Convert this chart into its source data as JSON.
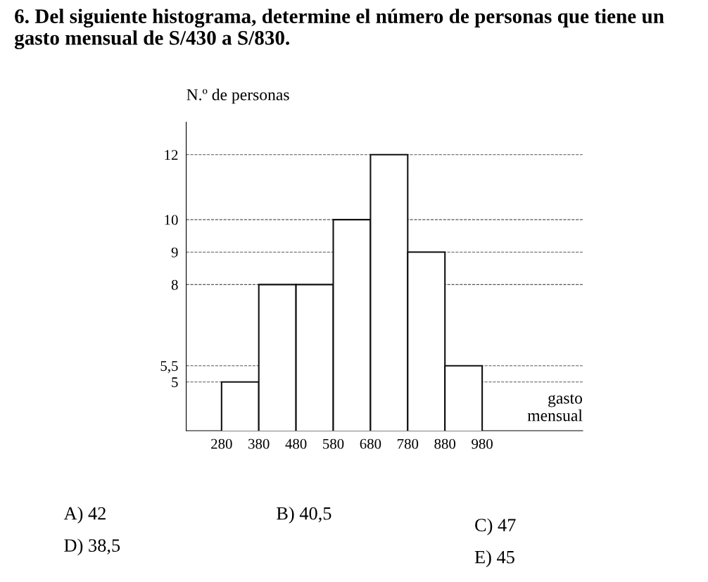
{
  "chart_data": {
    "type": "histogram",
    "title": "6. Del siguiente histograma, determine el número de personas que tiene un gasto mensual de S/430 a S/830.",
    "xlabel": "gasto mensual",
    "ylabel": "N.º de personas",
    "bins": [
      280,
      380,
      480,
      580,
      680,
      780,
      880,
      980
    ],
    "values": [
      5,
      8,
      8,
      10,
      12,
      9,
      5.5
    ],
    "color": "#ffffff",
    "xlim": [
      185,
      1250
    ],
    "xticks": [
      280,
      380,
      480,
      580,
      680,
      780,
      880,
      980
    ],
    "ylim": [
      3.5,
      13
    ],
    "yticks": [
      5,
      {
        "value": 5.5,
        "label": "5,5"
      },
      8,
      9,
      10,
      12
    ],
    "grid": "y",
    "line_style": "dashed",
    "annotations": [
      "A) 42",
      "B) 40,5",
      "C) 47",
      "D) 38,5",
      "E) 45"
    ]
  }
}
